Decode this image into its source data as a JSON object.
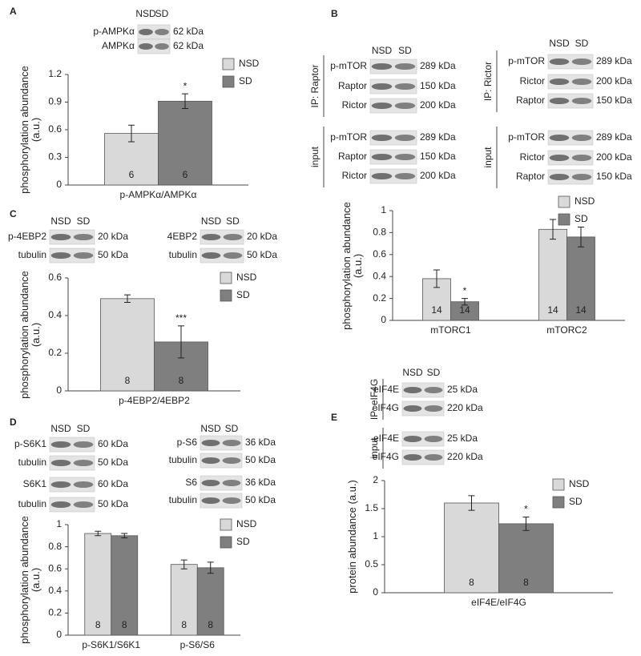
{
  "chart_data": [
    {
      "type": "bar",
      "panel_label": "A",
      "ylabel": "phosphorylation abundance (a.u.)",
      "categories": [
        "p-AMPKα/AMPKα"
      ],
      "ylim": [
        0,
        1.2
      ],
      "yticks": [
        0,
        0.3,
        0.6,
        0.9,
        1.2
      ],
      "series": [
        {
          "name": "NSD",
          "color": "#d9d9d9",
          "values": [
            0.56
          ],
          "errors": [
            0.09
          ],
          "n": [
            6
          ],
          "sig": [
            null
          ]
        },
        {
          "name": "SD",
          "color": "#7f7f7f",
          "values": [
            0.91
          ],
          "errors": [
            0.08
          ],
          "n": [
            6
          ],
          "sig": [
            "*"
          ]
        }
      ],
      "blots": [
        {
          "lanes": [
            "NSD",
            "SD"
          ],
          "sections": [
            {
              "rows": [
                {
                  "name": "p-AMPKα",
                  "size": "62 kDa"
                },
                {
                  "name": "AMPKα",
                  "size": "62 kDa"
                }
              ]
            }
          ]
        }
      ]
    },
    {
      "type": "bar",
      "panel_label": "B",
      "ylabel": "phosphorylation abundance (a.u.)",
      "categories": [
        "mTORC1",
        "mTORC2"
      ],
      "ylim": [
        0,
        1
      ],
      "yticks": [
        0,
        0.2,
        0.4,
        0.6,
        0.8,
        1
      ],
      "series": [
        {
          "name": "NSD",
          "color": "#d9d9d9",
          "values": [
            0.38,
            0.83
          ],
          "errors": [
            0.08,
            0.09
          ],
          "n": [
            14,
            14
          ],
          "sig": [
            null,
            null
          ]
        },
        {
          "name": "SD",
          "color": "#7f7f7f",
          "values": [
            0.17,
            0.76
          ],
          "errors": [
            0.03,
            0.09
          ],
          "n": [
            14,
            14
          ],
          "sig": [
            "*",
            null
          ]
        }
      ],
      "blots": [
        {
          "lanes": [
            "NSD",
            "SD"
          ],
          "sections": [
            {
              "label": "IP: Raptor",
              "rows": [
                {
                  "name": "p-mTOR",
                  "size": "289 kDa"
                },
                {
                  "name": "Raptor",
                  "size": "150 kDa"
                },
                {
                  "name": "Rictor",
                  "size": "200 kDa"
                }
              ]
            },
            {
              "label": "input",
              "rows": [
                {
                  "name": "p-mTOR",
                  "size": "289 kDa"
                },
                {
                  "name": "Raptor",
                  "size": "150 kDa"
                },
                {
                  "name": "Rictor",
                  "size": "200 kDa"
                }
              ]
            }
          ]
        },
        {
          "lanes": [
            "NSD",
            "SD"
          ],
          "sections": [
            {
              "label": "IP: Rictor",
              "rows": [
                {
                  "name": "p-mTOR",
                  "size": "289 kDa"
                },
                {
                  "name": "Rictor",
                  "size": "200 kDa"
                },
                {
                  "name": "Raptor",
                  "size": "150 kDa"
                }
              ]
            },
            {
              "label": "input",
              "rows": [
                {
                  "name": "p-mTOR",
                  "size": "289 kDa"
                },
                {
                  "name": "Rictor",
                  "size": "200 kDa"
                },
                {
                  "name": "Raptor",
                  "size": "150 kDa"
                }
              ]
            }
          ]
        }
      ]
    },
    {
      "type": "bar",
      "panel_label": "C",
      "ylabel": "phosphorylation abundance (a.u.)",
      "categories": [
        "p-4EBP2/4EBP2"
      ],
      "ylim": [
        0,
        0.6
      ],
      "yticks": [
        0,
        0.2,
        0.4,
        0.6
      ],
      "series": [
        {
          "name": "NSD",
          "color": "#d9d9d9",
          "values": [
            0.49
          ],
          "errors": [
            0.02
          ],
          "n": [
            8
          ],
          "sig": [
            null
          ]
        },
        {
          "name": "SD",
          "color": "#7f7f7f",
          "values": [
            0.26
          ],
          "errors": [
            0.085
          ],
          "n": [
            8
          ],
          "sig": [
            "***"
          ]
        }
      ],
      "blots": [
        {
          "lanes": [
            "NSD",
            "SD"
          ],
          "sections": [
            {
              "rows": [
                {
                  "name": "p-4EBP2",
                  "size": "20 kDa"
                },
                {
                  "name": "tubulin",
                  "size": "50 kDa"
                }
              ]
            }
          ]
        },
        {
          "lanes": [
            "NSD",
            "SD"
          ],
          "sections": [
            {
              "rows": [
                {
                  "name": "4EBP2",
                  "size": "20 kDa"
                },
                {
                  "name": "tubulin",
                  "size": "50 kDa"
                }
              ]
            }
          ]
        }
      ]
    },
    {
      "type": "bar",
      "panel_label": "D",
      "ylabel": "phosphorylation abundance (a.u.)",
      "categories": [
        "p-S6K1/S6K1",
        "p-S6/S6"
      ],
      "ylim": [
        0,
        1
      ],
      "yticks": [
        0,
        0.2,
        0.4,
        0.6,
        0.8,
        1
      ],
      "series": [
        {
          "name": "NSD",
          "color": "#d9d9d9",
          "values": [
            0.92,
            0.64
          ],
          "errors": [
            0.02,
            0.04
          ],
          "n": [
            8,
            8
          ],
          "sig": [
            null,
            null
          ]
        },
        {
          "name": "SD",
          "color": "#7f7f7f",
          "values": [
            0.9,
            0.61
          ],
          "errors": [
            0.02,
            0.05
          ],
          "n": [
            8,
            8
          ],
          "sig": [
            null,
            null
          ]
        }
      ],
      "blots": [
        {
          "lanes": [
            "NSD",
            "SD"
          ],
          "sections": [
            {
              "rows": [
                {
                  "name": "p-S6K1",
                  "size": "60 kDa"
                },
                {
                  "name": "tubulin",
                  "size": "50 kDa"
                }
              ]
            },
            {
              "rows": [
                {
                  "name": "S6K1",
                  "size": "60 kDa"
                },
                {
                  "name": "tubulin",
                  "size": "50 kDa"
                }
              ]
            }
          ]
        },
        {
          "lanes": [
            "NSD",
            "SD"
          ],
          "sections": [
            {
              "rows": [
                {
                  "name": "p-S6",
                  "size": "36 kDa"
                },
                {
                  "name": "tubulin",
                  "size": "50 kDa"
                }
              ]
            },
            {
              "rows": [
                {
                  "name": "S6",
                  "size": "36 kDa"
                },
                {
                  "name": "tubulin",
                  "size": "50 kDa"
                }
              ]
            }
          ]
        }
      ]
    },
    {
      "type": "bar",
      "panel_label": "E",
      "ylabel": "protein abundance (a.u.)",
      "categories": [
        "eIF4E/eIF4G"
      ],
      "ylim": [
        0,
        2
      ],
      "yticks": [
        0,
        0.5,
        1,
        1.5,
        2
      ],
      "series": [
        {
          "name": "NSD",
          "color": "#d9d9d9",
          "values": [
            1.6
          ],
          "errors": [
            0.13
          ],
          "n": [
            8
          ],
          "sig": [
            null
          ]
        },
        {
          "name": "SD",
          "color": "#7f7f7f",
          "values": [
            1.23
          ],
          "errors": [
            0.12
          ],
          "n": [
            8
          ],
          "sig": [
            "*"
          ]
        }
      ],
      "blots": [
        {
          "lanes": [
            "NSD",
            "SD"
          ],
          "sections": [
            {
              "label": "IP: eIF4G",
              "rows": [
                {
                  "name": "eIF4E",
                  "size": "25 kDa"
                },
                {
                  "name": "eIF4G",
                  "size": "220 kDa"
                }
              ]
            },
            {
              "label": "input",
              "rows": [
                {
                  "name": "eIF4E",
                  "size": "25 kDa"
                },
                {
                  "name": "eIF4G",
                  "size": "220 kDa"
                }
              ]
            }
          ]
        }
      ]
    }
  ]
}
